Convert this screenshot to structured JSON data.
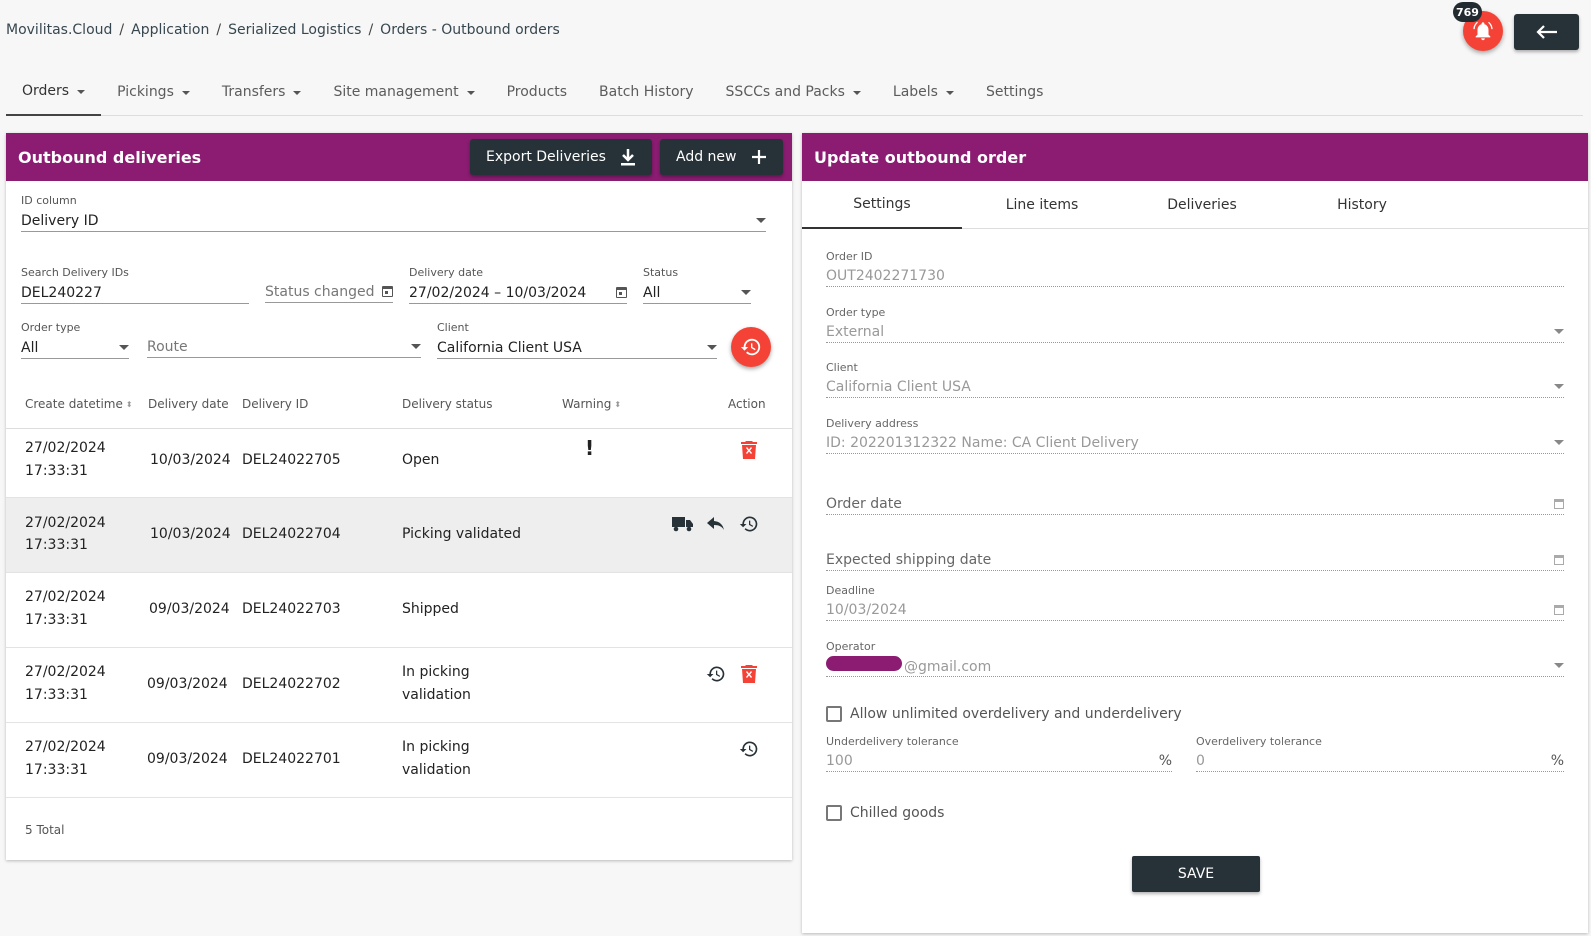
{
  "breadcrumb": [
    "Movilitas.Cloud",
    "Application",
    "Serialized Logistics",
    "Orders - Outbound orders"
  ],
  "notifications": {
    "count": "769"
  },
  "nav": [
    {
      "label": "Orders",
      "dropdown": true,
      "active": true
    },
    {
      "label": "Pickings",
      "dropdown": true
    },
    {
      "label": "Transfers",
      "dropdown": true
    },
    {
      "label": "Site management",
      "dropdown": true
    },
    {
      "label": "Products",
      "dropdown": false
    },
    {
      "label": "Batch History",
      "dropdown": false
    },
    {
      "label": "SSCCs and Packs",
      "dropdown": true
    },
    {
      "label": "Labels",
      "dropdown": true
    },
    {
      "label": "Settings",
      "dropdown": false
    }
  ],
  "left": {
    "title": "Outbound deliveries",
    "export_label": "Export Deliveries",
    "add_label": "Add new",
    "filters": {
      "id_column_label": "ID column",
      "id_column_value": "Delivery ID",
      "search_label": "Search Delivery IDs",
      "search_value": "DEL240227",
      "status_changed_placeholder": "Status changed",
      "delivery_date_label": "Delivery date",
      "delivery_date_value": "27/02/2024 – 10/03/2024",
      "status_label": "Status",
      "status_value": "All",
      "order_type_label": "Order type",
      "order_type_value": "All",
      "route_placeholder": "Route",
      "client_label": "Client",
      "client_value": "California Client USA"
    },
    "columns": [
      "Create datetime",
      "Delivery date",
      "Delivery ID",
      "Delivery status",
      "Warning",
      "Action"
    ],
    "rows": [
      {
        "create_date": "27/02/2024",
        "create_time": "17:33:31",
        "delivery_date": "10/03/2024",
        "delivery_id": "DEL24022705",
        "status": "Open",
        "warning": "!"
      },
      {
        "create_date": "27/02/2024",
        "create_time": "17:33:31",
        "delivery_date": "10/03/2024",
        "delivery_id": "DEL24022704",
        "status": "Picking validated",
        "warning": ""
      },
      {
        "create_date": "27/02/2024",
        "create_time": "17:33:31",
        "delivery_date": "09/03/2024",
        "delivery_id": "DEL24022703",
        "status": "Shipped",
        "warning": ""
      },
      {
        "create_date": "27/02/2024",
        "create_time": "17:33:31",
        "delivery_date": "09/03/2024",
        "delivery_id": "DEL24022702",
        "status_line1": "In picking",
        "status_line2": "validation",
        "warning": ""
      },
      {
        "create_date": "27/02/2024",
        "create_time": "17:33:31",
        "delivery_date": "09/03/2024",
        "delivery_id": "DEL24022701",
        "status_line1": "In picking",
        "status_line2": "validation",
        "warning": ""
      }
    ],
    "total": "5 Total"
  },
  "right": {
    "title": "Update outbound order",
    "tabs": [
      "Settings",
      "Line items",
      "Deliveries",
      "History"
    ],
    "order_id_label": "Order ID",
    "order_id_value": "OUT2402271730",
    "order_type_label": "Order type",
    "order_type_value": "External",
    "client_label": "Client",
    "client_value": "California Client USA",
    "address_label": "Delivery address",
    "address_value": "ID: 202201312322  Name: CA Client Delivery",
    "order_date_placeholder": "Order date",
    "shipping_date_placeholder": "Expected shipping date",
    "deadline_label": "Deadline",
    "deadline_value": "10/03/2024",
    "operator_label": "Operator",
    "operator_value": "@gmail.com",
    "allow_label": "Allow unlimited overdelivery and underdelivery",
    "under_label": "Underdelivery tolerance",
    "under_value": "100",
    "under_unit": "%",
    "over_label": "Overdelivery tolerance",
    "over_value": "0",
    "over_unit": "%",
    "chilled_label": "Chilled goods",
    "save_label": "SAVE"
  },
  "colors": {
    "brand": "#8b1c72",
    "danger": "#f44336",
    "dark": "#263238"
  }
}
